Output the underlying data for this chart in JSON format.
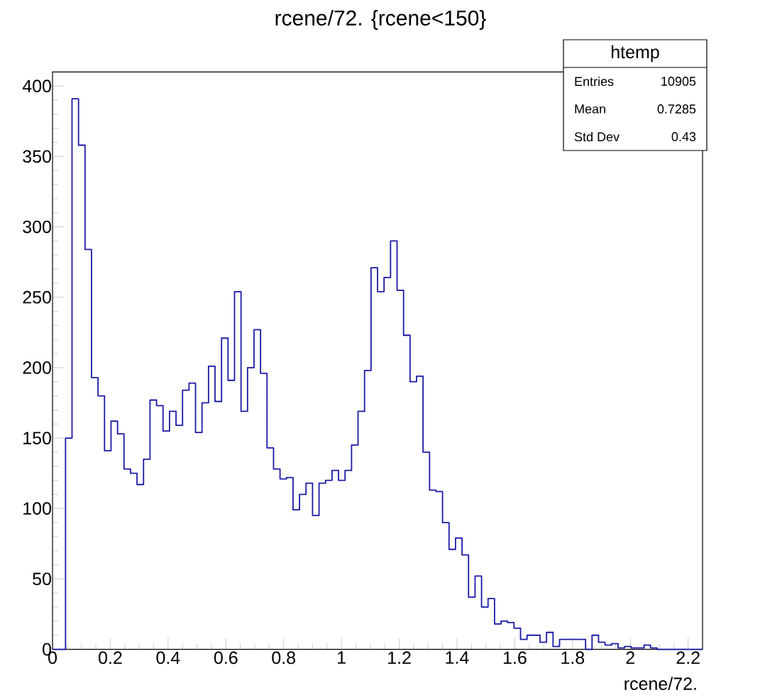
{
  "chart_data": {
    "type": "histogram",
    "title": "rcene/72. {rcene<150}",
    "xlabel": "rcene/72.",
    "bins": [
      0,
      0.0225,
      0.045,
      0.0675,
      0.09,
      0.1125,
      0.135,
      0.1575,
      0.18,
      0.2025,
      0.225,
      0.2475,
      0.27,
      0.2925,
      0.315,
      0.3375,
      0.36,
      0.3825,
      0.405,
      0.4275,
      0.45,
      0.4725,
      0.495,
      0.5175,
      0.54,
      0.5625,
      0.585,
      0.6075,
      0.63,
      0.6525,
      0.675,
      0.6975,
      0.72,
      0.7425,
      0.765,
      0.7875,
      0.81,
      0.8325,
      0.855,
      0.8775,
      0.9,
      0.9225,
      0.945,
      0.9675,
      0.99,
      1.0125,
      1.035,
      1.0575,
      1.08,
      1.1025,
      1.125,
      1.1475,
      1.17,
      1.1925,
      1.215,
      1.2375,
      1.26,
      1.2825,
      1.305,
      1.3275,
      1.35,
      1.3725,
      1.395,
      1.4175,
      1.44,
      1.4625,
      1.485,
      1.5075,
      1.53,
      1.5525,
      1.575,
      1.5975,
      1.62,
      1.6425,
      1.665,
      1.6875,
      1.71,
      1.7325,
      1.755,
      1.7775,
      1.8,
      1.8225,
      1.845,
      1.8675,
      1.89,
      1.9125,
      1.935,
      1.9575,
      1.98,
      2.0025,
      2.025,
      2.0475,
      2.07,
      2.0925,
      2.115,
      2.1375,
      2.16,
      2.1825,
      2.205,
      2.2275,
      2.25
    ],
    "values": [
      0,
      0,
      150,
      391,
      358,
      284,
      193,
      180,
      141,
      162,
      153,
      128,
      125,
      117,
      135,
      177,
      173,
      155,
      169,
      159,
      184,
      189,
      154,
      175,
      201,
      176,
      221,
      191,
      254,
      169,
      200,
      227,
      196,
      143,
      128,
      121,
      122,
      99,
      110,
      118,
      95,
      118,
      120,
      127,
      120,
      127,
      145,
      169,
      198,
      271,
      254,
      264,
      290,
      255,
      223,
      190,
      194,
      140,
      113,
      112,
      90,
      71,
      79,
      67,
      37,
      52,
      30,
      36,
      18,
      20,
      19,
      15,
      7,
      10,
      10,
      5,
      12,
      2,
      7,
      7,
      7,
      7,
      0,
      10,
      5,
      3,
      4,
      1,
      2,
      1,
      1,
      3,
      1,
      0,
      0,
      0,
      0,
      0,
      0,
      0
    ],
    "color": "#1a1aa6",
    "xlim": [
      0,
      2.25
    ],
    "ylim": [
      0,
      410
    ],
    "xticks": [
      0,
      0.2,
      0.4,
      0.6,
      0.8,
      1,
      1.2,
      1.4,
      1.6,
      1.8,
      2,
      2.2
    ],
    "yticks": [
      0,
      50,
      100,
      150,
      200,
      250,
      300,
      350,
      400
    ],
    "annotations": [
      "htemp",
      "Entries",
      "10905",
      "Mean",
      "0.7285",
      "Std Dev",
      "0.43"
    ]
  }
}
